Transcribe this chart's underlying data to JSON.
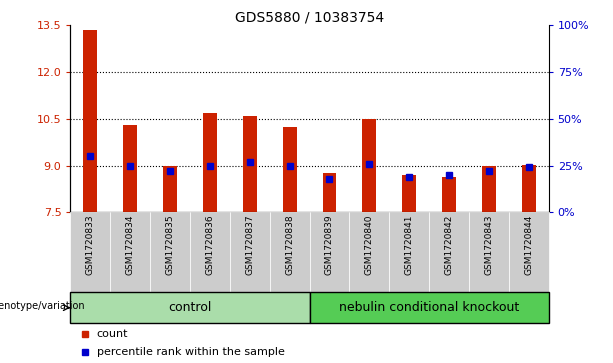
{
  "title": "GDS5880 / 10383754",
  "samples": [
    "GSM1720833",
    "GSM1720834",
    "GSM1720835",
    "GSM1720836",
    "GSM1720837",
    "GSM1720838",
    "GSM1720839",
    "GSM1720840",
    "GSM1720841",
    "GSM1720842",
    "GSM1720843",
    "GSM1720844"
  ],
  "counts": [
    13.35,
    10.3,
    9.0,
    10.68,
    10.58,
    10.25,
    8.75,
    10.5,
    8.7,
    8.62,
    9.0,
    9.02
  ],
  "percentiles": [
    30,
    25,
    22,
    25,
    27,
    25,
    18,
    26,
    19,
    20,
    22,
    24
  ],
  "ylim_left": [
    7.5,
    13.5
  ],
  "ylim_right": [
    0,
    100
  ],
  "yticks_left": [
    7.5,
    9.0,
    10.5,
    12.0,
    13.5
  ],
  "yticks_right": [
    0,
    25,
    50,
    75,
    100
  ],
  "ytick_labels_right": [
    "0%",
    "25%",
    "50%",
    "75%",
    "100%"
  ],
  "bar_color": "#cc2200",
  "dot_color": "#0000cc",
  "bar_bottom": 7.5,
  "grid_values": [
    9.0,
    10.5,
    12.0
  ],
  "control_color": "#aaddaa",
  "knockout_color": "#77cc77",
  "cell_bg_color": "#cccccc",
  "legend_items": [
    {
      "label": "count",
      "color": "#cc2200"
    },
    {
      "label": "percentile rank within the sample",
      "color": "#0000cc"
    }
  ],
  "bg_color": "#ffffff",
  "tick_color_left": "#cc2200",
  "tick_color_right": "#0000cc"
}
